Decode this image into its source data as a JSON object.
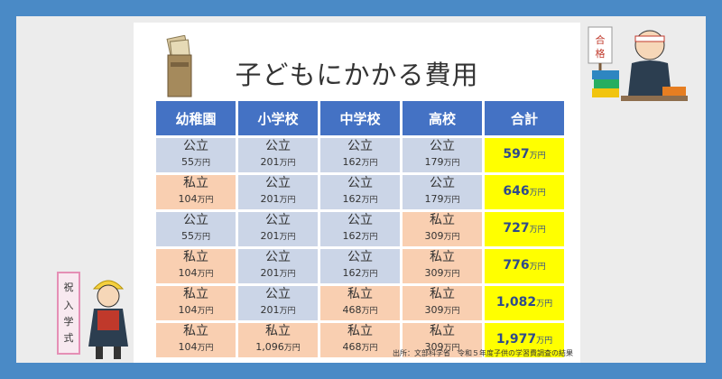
{
  "title": "子どもにかかる費用",
  "headers": [
    "幼稚園",
    "小学校",
    "中学校",
    "高校",
    "合計"
  ],
  "unit": "万円",
  "rows": [
    {
      "c": [
        {
          "k": "公立",
          "a": "55",
          "t": "pub"
        },
        {
          "k": "公立",
          "a": "201",
          "t": "pub"
        },
        {
          "k": "公立",
          "a": "162",
          "t": "pub"
        },
        {
          "k": "公立",
          "a": "179",
          "t": "pub"
        }
      ],
      "total": "597"
    },
    {
      "c": [
        {
          "k": "私立",
          "a": "104",
          "t": "pri"
        },
        {
          "k": "公立",
          "a": "201",
          "t": "pub"
        },
        {
          "k": "公立",
          "a": "162",
          "t": "pub"
        },
        {
          "k": "公立",
          "a": "179",
          "t": "pub"
        }
      ],
      "total": "646"
    },
    {
      "c": [
        {
          "k": "公立",
          "a": "55",
          "t": "pub"
        },
        {
          "k": "公立",
          "a": "201",
          "t": "pub"
        },
        {
          "k": "公立",
          "a": "162",
          "t": "pub"
        },
        {
          "k": "私立",
          "a": "309",
          "t": "pri"
        }
      ],
      "total": "727"
    },
    {
      "c": [
        {
          "k": "私立",
          "a": "104",
          "t": "pri"
        },
        {
          "k": "公立",
          "a": "201",
          "t": "pub"
        },
        {
          "k": "公立",
          "a": "162",
          "t": "pub"
        },
        {
          "k": "私立",
          "a": "309",
          "t": "pri"
        }
      ],
      "total": "776"
    },
    {
      "c": [
        {
          "k": "私立",
          "a": "104",
          "t": "pri"
        },
        {
          "k": "公立",
          "a": "201",
          "t": "pub"
        },
        {
          "k": "私立",
          "a": "468",
          "t": "pri"
        },
        {
          "k": "私立",
          "a": "309",
          "t": "pri"
        }
      ],
      "total": "1,082"
    },
    {
      "c": [
        {
          "k": "私立",
          "a": "104",
          "t": "pri"
        },
        {
          "k": "私立",
          "a": "1,096",
          "t": "pri"
        },
        {
          "k": "私立",
          "a": "468",
          "t": "pri"
        },
        {
          "k": "私立",
          "a": "309",
          "t": "pri"
        }
      ],
      "total": "1,977"
    }
  ],
  "source": "出所：文部科学省　令和５年度子供の学習費調査の結果",
  "illustration_right": {
    "sign": "合格",
    "icon": "studying-student-illustration"
  },
  "illustration_left": {
    "sign": "祝入学式",
    "icon": "school-entrance-girl-illustration"
  },
  "colors": {
    "background": "#4a8ac6",
    "header": "#4472c4",
    "public": "#cbd5e7",
    "private": "#f9cfb1",
    "total": "#ffff00"
  }
}
